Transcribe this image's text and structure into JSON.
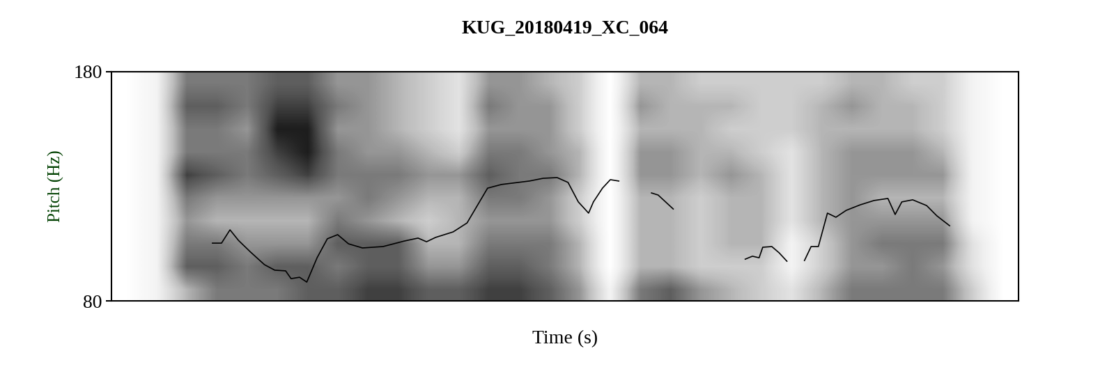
{
  "chart_data": {
    "type": "line",
    "title": "KUG_20180419_XC_064",
    "x_label": "Time (s)",
    "y_label": "Pitch (Hz)",
    "xlim": [
      0,
      1.5
    ],
    "ylim": [
      80,
      180
    ],
    "yticks": [
      80,
      180
    ],
    "tick_labels": "y",
    "grid": false,
    "color": "#000000",
    "x": [
      0.167,
      0.182,
      0.196,
      0.21,
      0.23,
      0.253,
      0.27,
      0.288,
      0.297,
      0.311,
      0.323,
      0.34,
      0.357,
      0.374,
      0.392,
      0.415,
      0.449,
      0.484,
      0.507,
      0.521,
      0.536,
      0.565,
      0.588,
      0.605,
      0.622,
      0.645,
      0.691,
      0.714,
      0.737,
      0.755,
      0.772,
      0.789,
      0.797,
      0.812,
      0.825,
      0.839,
      0.866,
      0.893,
      0.904,
      0.929,
      1.0,
      1.048,
      1.06,
      1.071,
      1.077,
      1.092,
      1.104,
      1.117,
      1.13,
      1.146,
      1.157,
      1.169,
      1.184,
      1.198,
      1.215,
      1.238,
      1.261,
      1.284,
      1.296,
      1.307,
      1.325,
      1.348,
      1.365,
      1.386
    ],
    "values": [
      105.2,
      105.2,
      111.0,
      106.4,
      101.3,
      95.8,
      93.4,
      93.1,
      89.7,
      90.3,
      88.2,
      98.8,
      107.1,
      108.9,
      104.9,
      103.1,
      103.7,
      106.1,
      107.4,
      105.8,
      107.7,
      110.1,
      114.0,
      121.6,
      129.2,
      130.8,
      132.3,
      133.5,
      133.8,
      131.7,
      123.2,
      118.3,
      123.2,
      129.2,
      132.9,
      132.3,
      null,
      127.1,
      126.2,
      120.1,
      null,
      98.2,
      99.5,
      98.8,
      103.4,
      103.7,
      101.0,
      97.3,
      null,
      97.6,
      103.7,
      103.7,
      118.3,
      116.5,
      119.5,
      121.9,
      123.8,
      124.7,
      117.7,
      123.2,
      124.1,
      121.6,
      117.1,
      112.8
    ],
    "spectrogram": {
      "intensity": [
        [
          0,
          0,
          0,
          0,
          0,
          0,
          0,
          0,
          0,
          0
        ],
        [
          0.1,
          0.1,
          0.1,
          0.1,
          0.1,
          0.1,
          0.1,
          0.1,
          0.1,
          0.1
        ],
        [
          0.4,
          0.7,
          0.6,
          0.5,
          0.6,
          0.8,
          0.6,
          0.6,
          0.7,
          0.6
        ],
        [
          0.6,
          0.7,
          0.6,
          0.4,
          0.5,
          0.7,
          0.6,
          0.6,
          0.7,
          0.6
        ],
        [
          0.6,
          0.6,
          0.5,
          0.4,
          0.5,
          0.6,
          0.6,
          0.5,
          0.6,
          0.6
        ],
        [
          0.6,
          0.7,
          0.5,
          0.4,
          0.5,
          0.7,
          0.8,
          0.9,
          0.8,
          0.7
        ],
        [
          0.7,
          0.7,
          0.5,
          0.4,
          0.5,
          0.8,
          0.9,
          0.9,
          0.8,
          0.7
        ],
        [
          0.7,
          0.6,
          0.7,
          0.6,
          0.5,
          0.6,
          0.6,
          0.5,
          0.6,
          0.5
        ],
        [
          0.8,
          0.7,
          0.7,
          0.5,
          0.6,
          0.6,
          0.5,
          0.5,
          0.5,
          0.5
        ],
        [
          0.8,
          0.7,
          0.7,
          0.4,
          0.5,
          0.6,
          0.5,
          0.4,
          0.4,
          0.4
        ],
        [
          0.7,
          0.5,
          0.4,
          0.3,
          0.4,
          0.5,
          0.4,
          0.3,
          0.3,
          0.3
        ],
        [
          0.7,
          0.5,
          0.4,
          0.4,
          0.4,
          0.5,
          0.3,
          0.2,
          0.2,
          0.2
        ],
        [
          0.8,
          0.7,
          0.6,
          0.5,
          0.6,
          0.7,
          0.6,
          0.5,
          0.6,
          0.5
        ],
        [
          0.8,
          0.7,
          0.6,
          0.5,
          0.6,
          0.6,
          0.6,
          0.5,
          0.5,
          0.5
        ],
        [
          0.7,
          0.6,
          0.6,
          0.5,
          0.5,
          0.6,
          0.5,
          0.5,
          0.5,
          0.4
        ],
        [
          0.5,
          0.4,
          0.4,
          0.3,
          0.3,
          0.4,
          0.4,
          0.3,
          0.3,
          0.3
        ],
        [
          0.1,
          0,
          0,
          0,
          0,
          0,
          0,
          0,
          0,
          0
        ],
        [
          0.6,
          0.4,
          0.4,
          0.4,
          0.4,
          0.5,
          0.5,
          0.4,
          0.5,
          0.4
        ],
        [
          0.7,
          0.4,
          0.4,
          0.4,
          0.4,
          0.5,
          0.5,
          0.4,
          0.4,
          0.4
        ],
        [
          0.5,
          0.3,
          0.3,
          0.3,
          0.3,
          0.4,
          0.4,
          0.4,
          0.4,
          0.3
        ],
        [
          0.4,
          0.3,
          0.4,
          0.4,
          0.4,
          0.5,
          0.4,
          0.3,
          0.4,
          0.3
        ],
        [
          0.3,
          0.3,
          0.4,
          0.4,
          0.4,
          0.4,
          0.3,
          0.3,
          0.3,
          0.3
        ],
        [
          0.2,
          0.1,
          0.1,
          0.2,
          0.2,
          0.2,
          0.2,
          0.3,
          0.3,
          0.3
        ],
        [
          0.4,
          0.3,
          0.3,
          0.4,
          0.4,
          0.4,
          0.4,
          0.4,
          0.4,
          0.3
        ],
        [
          0.6,
          0.5,
          0.5,
          0.5,
          0.5,
          0.5,
          0.5,
          0.4,
          0.5,
          0.4
        ],
        [
          0.6,
          0.5,
          0.6,
          0.5,
          0.4,
          0.5,
          0.5,
          0.4,
          0.4,
          0.4
        ],
        [
          0.6,
          0.6,
          0.6,
          0.5,
          0.4,
          0.5,
          0.5,
          0.4,
          0.4,
          0.3
        ],
        [
          0.6,
          0.5,
          0.6,
          0.5,
          0.4,
          0.5,
          0.4,
          0.3,
          0.3,
          0.3
        ],
        [
          0.3,
          0.2,
          0.2,
          0.1,
          0.1,
          0.1,
          0.1,
          0.1,
          0.1,
          0.1
        ],
        [
          0,
          0,
          0,
          0,
          0,
          0,
          0,
          0,
          0,
          0
        ]
      ]
    }
  }
}
